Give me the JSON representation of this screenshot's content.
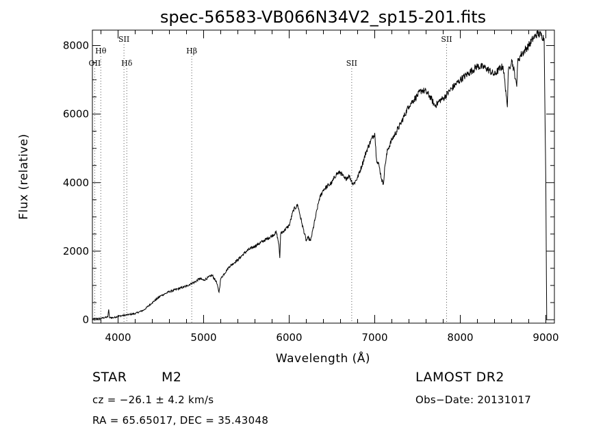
{
  "chart_data": {
    "type": "line",
    "title": "spec-56583-VB066N34V2_sp15-201.fits",
    "xlabel": "Wavelength (Å)",
    "ylabel": "Flux (relative)",
    "xlim": [
      3700,
      9100
    ],
    "ylim": [
      -100,
      8450
    ],
    "xticks": [
      4000,
      5000,
      6000,
      7000,
      8000,
      9000
    ],
    "xtick_labels": [
      "4000",
      "5000",
      "6000",
      "7000",
      "8000",
      "9000"
    ],
    "yticks": [
      0,
      2000,
      4000,
      6000,
      8000
    ],
    "ytick_labels": [
      "0",
      "2000",
      "4000",
      "6000",
      "8000"
    ],
    "grid": false,
    "series": [
      {
        "x": [
          3700,
          3800,
          3880,
          3890,
          3900,
          3950,
          4000,
          4100,
          4200,
          4300,
          4400,
          4500,
          4600,
          4700,
          4800,
          4850,
          4900,
          4950,
          5000,
          5100,
          5150,
          5180,
          5200,
          5300,
          5400,
          5500,
          5600,
          5700,
          5800,
          5850,
          5880,
          5890,
          5900,
          6000,
          6050,
          6100,
          6150,
          6200,
          6220,
          6250,
          6300,
          6350,
          6400,
          6500,
          6550,
          6600,
          6650,
          6700,
          6750,
          6800,
          6850,
          6900,
          6950,
          7000,
          7020,
          7050,
          7080,
          7100,
          7120,
          7150,
          7200,
          7300,
          7400,
          7500,
          7550,
          7600,
          7650,
          7700,
          7730,
          7760,
          7800,
          7900,
          8000,
          8100,
          8200,
          8300,
          8400,
          8450,
          8500,
          8540,
          8550,
          8560,
          8600,
          8650,
          8660,
          8670,
          8700,
          8800,
          8850,
          8900,
          8950,
          8980,
          9000,
          9010
        ],
        "y": [
          20,
          40,
          80,
          300,
          60,
          60,
          100,
          140,
          180,
          280,
          500,
          700,
          820,
          900,
          980,
          1050,
          1100,
          1200,
          1150,
          1300,
          1100,
          800,
          1200,
          1550,
          1750,
          2000,
          2150,
          2300,
          2450,
          2550,
          2200,
          1800,
          2500,
          2750,
          3200,
          3350,
          2800,
          2300,
          2400,
          2300,
          2900,
          3500,
          3800,
          4000,
          4250,
          4300,
          4100,
          4200,
          3950,
          4150,
          4500,
          4900,
          5200,
          5450,
          4700,
          4500,
          4100,
          3950,
          4500,
          4950,
          5250,
          5700,
          6250,
          6550,
          6700,
          6650,
          6500,
          6250,
          6300,
          6400,
          6450,
          6750,
          7000,
          7200,
          7400,
          7350,
          7150,
          7300,
          7400,
          6500,
          6200,
          7200,
          7600,
          7000,
          6800,
          7500,
          7700,
          8000,
          8200,
          8350,
          8300,
          8200,
          3900,
          0
        ]
      }
    ],
    "spectral_lines": [
      {
        "label": "Hθ",
        "x": 3798,
        "row": 1
      },
      {
        "label": "OII",
        "x": 3727,
        "row": 2
      },
      {
        "label": "SII",
        "x": 4069,
        "row": 0
      },
      {
        "label": "Hδ",
        "x": 4102,
        "row": 2
      },
      {
        "label": "Hβ",
        "x": 4861,
        "row": 1
      },
      {
        "label": "SII",
        "x": 6731,
        "row": 2
      },
      {
        "label": "SII",
        "x": 7840,
        "row": 0
      }
    ]
  },
  "info": {
    "object_class": "STAR",
    "subclass": "M2",
    "survey": "LAMOST DR2",
    "cz": "cz = −26.1 ± 4.2 km/s",
    "obs_date": "Obs−Date: 20131017",
    "coords": "RA =  65.65017, DEC =  35.43048"
  }
}
